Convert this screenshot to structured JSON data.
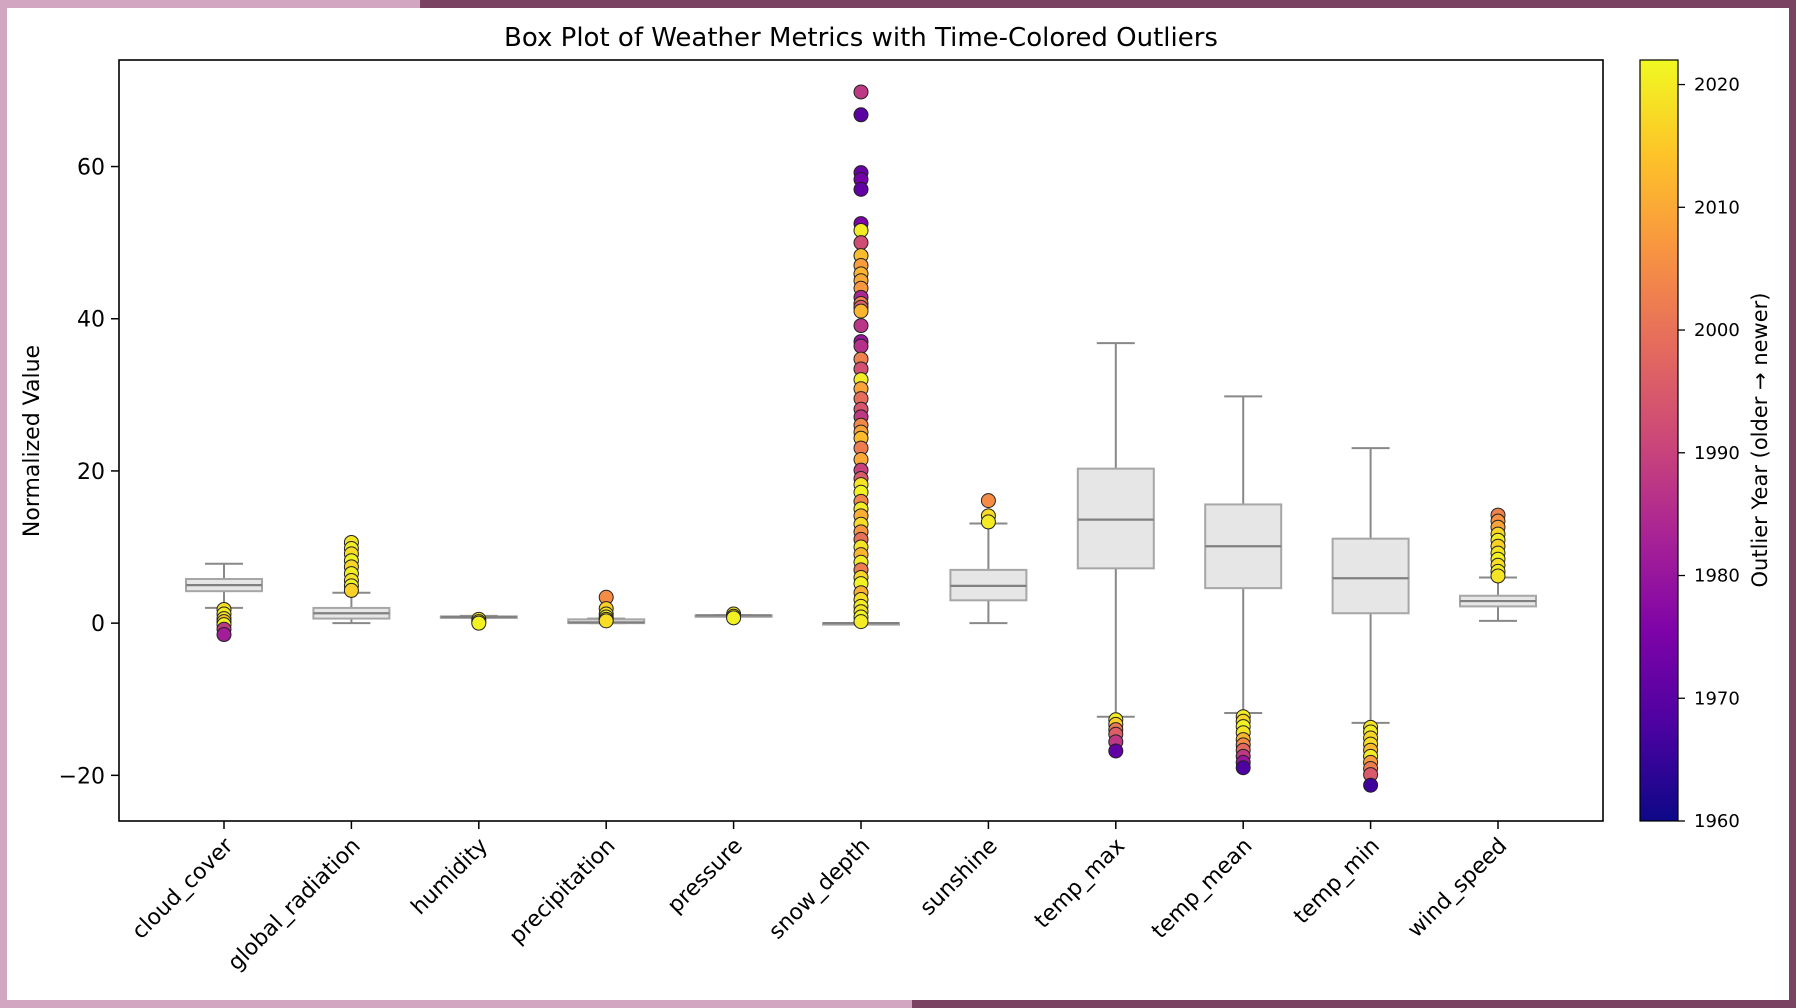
{
  "chart_data": {
    "type": "box",
    "title": "Box Plot of Weather Metrics with Time-Colored Outliers",
    "xlabel": "",
    "ylabel": "Normalized Value",
    "ylim": [
      -26,
      74
    ],
    "yticks": [
      -20,
      0,
      20,
      40,
      60
    ],
    "grid": false,
    "categories": [
      "cloud_cover",
      "global_radiation",
      "humidity",
      "precipitation",
      "pressure",
      "snow_depth",
      "sunshine",
      "temp_max",
      "temp_mean",
      "temp_min",
      "wind_speed"
    ],
    "boxes": [
      {
        "whisker_low": 2.0,
        "q1": 4.2,
        "median": 5.0,
        "q3": 5.8,
        "whisker_high": 7.8
      },
      {
        "whisker_low": 0.0,
        "q1": 0.6,
        "median": 1.3,
        "q3": 2.0,
        "whisker_high": 4.0
      },
      {
        "whisker_low": 0.7,
        "q1": 0.78,
        "median": 0.82,
        "q3": 0.88,
        "whisker_high": 0.95
      },
      {
        "whisker_low": 0.0,
        "q1": 0.0,
        "median": 0.1,
        "q3": 0.5,
        "whisker_high": 0.6
      },
      {
        "whisker_low": 1.0,
        "q1": 1.0,
        "median": 1.02,
        "q3": 1.03,
        "whisker_high": 1.05
      },
      {
        "whisker_low": 0.0,
        "q1": 0.0,
        "median": 0.0,
        "q3": 0.0,
        "whisker_high": 0.0
      },
      {
        "whisker_low": 0.0,
        "q1": 3.0,
        "median": 4.9,
        "q3": 7.0,
        "whisker_high": 13.1
      },
      {
        "whisker_low": -12.3,
        "q1": 7.2,
        "median": 13.6,
        "q3": 20.3,
        "whisker_high": 36.8
      },
      {
        "whisker_low": -11.8,
        "q1": 4.6,
        "median": 10.1,
        "q3": 15.6,
        "whisker_high": 29.8
      },
      {
        "whisker_low": -13.1,
        "q1": 1.3,
        "median": 5.9,
        "q3": 11.1,
        "whisker_high": 23.0
      },
      {
        "whisker_low": 0.3,
        "q1": 2.2,
        "median": 2.9,
        "q3": 3.6,
        "whisker_high": 6.0
      }
    ],
    "outliers": [
      [
        [
          1.8,
          2018
        ],
        [
          1.2,
          2020
        ],
        [
          0.6,
          2019
        ],
        [
          0.2,
          2015
        ],
        [
          -0.2,
          2021
        ],
        [
          -0.8,
          1988
        ],
        [
          -1.5,
          1982
        ]
      ],
      [
        [
          10.6,
          2019
        ],
        [
          9.8,
          2020
        ],
        [
          9.1,
          2018
        ],
        [
          8.2,
          2021
        ],
        [
          7.4,
          2017
        ],
        [
          6.5,
          2020
        ],
        [
          5.6,
          2019
        ],
        [
          4.9,
          2021
        ],
        [
          4.3,
          2016
        ]
      ],
      [
        [
          0.5,
          2019
        ],
        [
          0.2,
          2020
        ],
        [
          0.0,
          2021
        ]
      ],
      [
        [
          3.4,
          2005
        ],
        [
          1.9,
          2016
        ],
        [
          1.2,
          2019
        ],
        [
          0.8,
          2020
        ],
        [
          0.5,
          2021
        ],
        [
          0.3,
          2018
        ]
      ],
      [
        [
          1.2,
          2019
        ],
        [
          0.9,
          2020
        ],
        [
          0.7,
          2021
        ]
      ],
      [
        [
          69.8,
          1988
        ],
        [
          66.8,
          1970
        ],
        [
          59.2,
          1972
        ],
        [
          58.3,
          1974
        ],
        [
          57.0,
          1971
        ],
        [
          52.5,
          1975
        ],
        [
          51.6,
          2020
        ],
        [
          50.0,
          1992
        ],
        [
          48.3,
          2013
        ],
        [
          47.0,
          2008
        ],
        [
          45.9,
          2012
        ],
        [
          45.0,
          2010
        ],
        [
          44.0,
          2007
        ],
        [
          42.8,
          1984
        ],
        [
          42.0,
          2003
        ],
        [
          41.5,
          1996
        ],
        [
          41.0,
          2012
        ],
        [
          39.1,
          1987
        ],
        [
          37.0,
          1980
        ],
        [
          36.4,
          1986
        ],
        [
          34.7,
          2003
        ],
        [
          33.4,
          1993
        ],
        [
          32.0,
          2020
        ],
        [
          30.8,
          2009
        ],
        [
          29.5,
          1999
        ],
        [
          28.1,
          1994
        ],
        [
          27.1,
          1988
        ],
        [
          26.0,
          2004
        ],
        [
          25.1,
          2009
        ],
        [
          24.3,
          2013
        ],
        [
          23.0,
          2002
        ],
        [
          21.5,
          2010
        ],
        [
          20.1,
          1990
        ],
        [
          19.0,
          1995
        ],
        [
          18.2,
          2019
        ],
        [
          17.2,
          2021
        ],
        [
          16.0,
          2004
        ],
        [
          15.0,
          2020
        ],
        [
          14.1,
          2011
        ],
        [
          13.0,
          2018
        ],
        [
          12.0,
          2007
        ],
        [
          11.0,
          2000
        ],
        [
          10.0,
          2019
        ],
        [
          9.0,
          2012
        ],
        [
          8.0,
          2020
        ],
        [
          7.0,
          2002
        ],
        [
          6.0,
          2017
        ],
        [
          5.2,
          2021
        ],
        [
          4.0,
          2011
        ],
        [
          3.1,
          2018
        ],
        [
          2.2,
          2020
        ],
        [
          1.5,
          2019
        ],
        [
          0.8,
          2021
        ],
        [
          0.2,
          2020
        ]
      ],
      [
        [
          16.1,
          2005
        ],
        [
          14.1,
          2018
        ],
        [
          13.3,
          2020
        ]
      ],
      [
        [
          -12.7,
          2020
        ],
        [
          -13.3,
          2016
        ],
        [
          -14.0,
          2001
        ],
        [
          -14.6,
          1996
        ],
        [
          -15.6,
          1988
        ],
        [
          -16.8,
          1971
        ]
      ],
      [
        [
          -12.3,
          2020
        ],
        [
          -12.9,
          2017
        ],
        [
          -13.6,
          2021
        ],
        [
          -14.4,
          2019
        ],
        [
          -15.3,
          2012
        ],
        [
          -16.0,
          2005
        ],
        [
          -16.7,
          1998
        ],
        [
          -17.5,
          1988
        ],
        [
          -18.3,
          1980
        ],
        [
          -19.0,
          1968
        ]
      ],
      [
        [
          -13.7,
          2019
        ],
        [
          -14.3,
          2020
        ],
        [
          -15.1,
          2017
        ],
        [
          -15.9,
          2018
        ],
        [
          -16.7,
          2013
        ],
        [
          -17.5,
          2020
        ],
        [
          -18.3,
          2008
        ],
        [
          -19.1,
          2002
        ],
        [
          -19.9,
          1995
        ],
        [
          -21.3,
          1966
        ]
      ],
      [
        [
          14.2,
          2003
        ],
        [
          13.4,
          2006
        ],
        [
          12.6,
          2009
        ],
        [
          11.7,
          2017
        ],
        [
          10.9,
          2020
        ],
        [
          10.1,
          2016
        ],
        [
          9.2,
          2019
        ],
        [
          8.4,
          2021
        ],
        [
          7.6,
          2018
        ],
        [
          6.8,
          2020
        ],
        [
          6.2,
          2019
        ]
      ]
    ],
    "colorbar": {
      "label": "Outlier Year (older → newer)",
      "min": 1960,
      "max": 2022,
      "ticks": [
        1960,
        1970,
        1980,
        1990,
        2000,
        2010,
        2020
      ],
      "colormap": "plasma"
    }
  }
}
